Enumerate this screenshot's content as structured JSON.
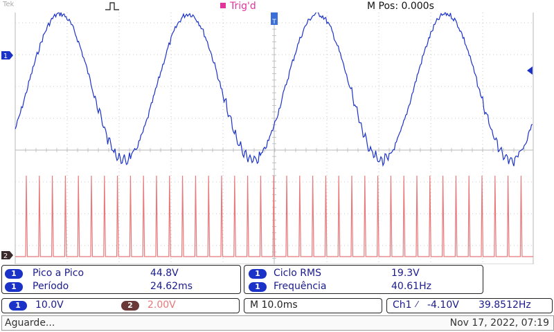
{
  "header": {
    "brand": "Tek",
    "trigger_state": "Trig'd",
    "position": "M Pos: 0.000s"
  },
  "markers": {
    "ch1": "1",
    "ch2": "2"
  },
  "measurements_left": [
    {
      "channel": "1",
      "label": "Pico a Pico",
      "value": "44.8V"
    },
    {
      "channel": "1",
      "label": "Período",
      "value": "24.62ms"
    }
  ],
  "measurements_right": [
    {
      "channel": "1",
      "label": "Ciclo RMS",
      "value": "19.3V"
    },
    {
      "channel": "1",
      "label": "Frequência",
      "value": "40.61Hz"
    }
  ],
  "settings": {
    "ch1_badge": "1",
    "ch1_scale": "10.0V",
    "ch2_badge": "2",
    "ch2_scale": "2.00V",
    "timebase": "M 10.0ms",
    "trigger_source": "Ch1",
    "trigger_slope": "⁄",
    "trigger_level": "-4.10V",
    "trigger_freq": "39.8512Hz"
  },
  "status": {
    "message": "Aguarde...",
    "datetime": "Nov 17, 2022, 07:19"
  },
  "colors": {
    "ch1": "#1a32c8",
    "ch2": "#e8787a",
    "grid": "#b8b8b8",
    "trigger": "#e0359b"
  }
}
